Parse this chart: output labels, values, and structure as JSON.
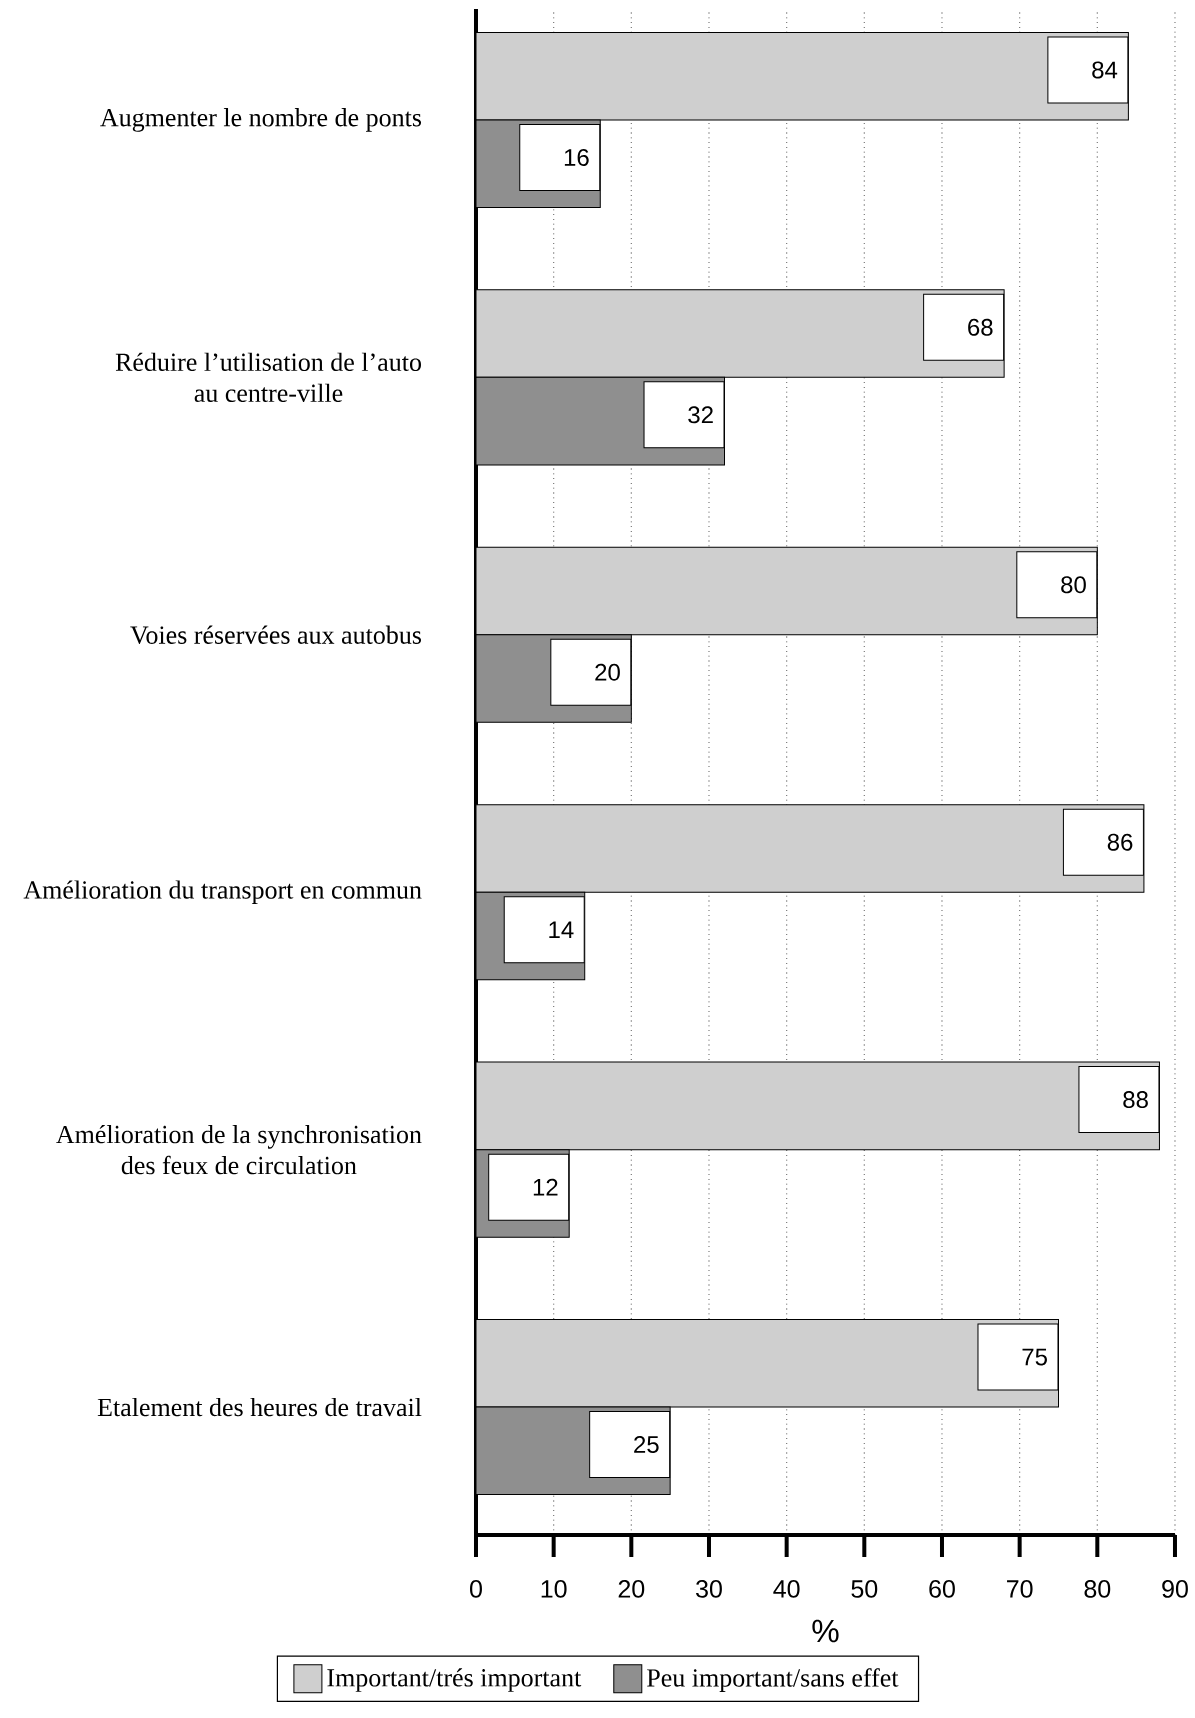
{
  "chart_data": {
    "type": "bar",
    "orientation": "horizontal",
    "categories": [
      "Augmenter le nombre de ponts",
      "Réduire l’utilisation de l’auto\nau centre-ville",
      "Voies réservées aux autobus",
      "Amélioration du transport en commun",
      "Amélioration de la synchronisation\ndes feux de circulation",
      "Etalement des heures de travail"
    ],
    "series": [
      {
        "name": "Important/trés important",
        "color": "#cfcfcf",
        "values": [
          84,
          68,
          80,
          86,
          88,
          75
        ]
      },
      {
        "name": "Peu important/sans effet",
        "color": "#8f8f8f",
        "values": [
          16,
          32,
          20,
          14,
          12,
          25
        ]
      }
    ],
    "xlabel": "%",
    "xlim": [
      0,
      90
    ],
    "xticks": [
      0,
      10,
      20,
      30,
      40,
      50,
      60,
      70,
      80,
      90
    ],
    "grid": "x",
    "legend": "bottom",
    "data_labels": true
  }
}
